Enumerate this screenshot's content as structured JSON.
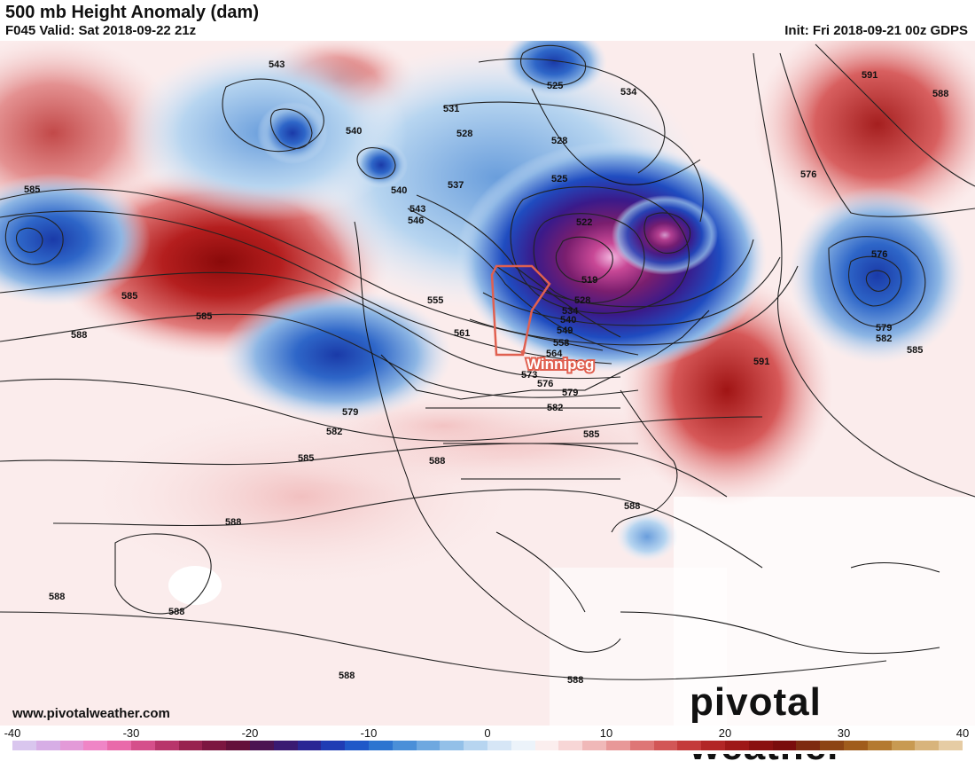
{
  "header": {
    "title": "500 mb Height Anomaly (dam)",
    "valid": "F045 Valid: Sat 2018-09-22 21z",
    "init": "Init: Fri 2018-09-21 00z GDPS"
  },
  "footer": {
    "site": "www.pivotalweather.com",
    "brand": "pivotal weather"
  },
  "map": {
    "highlight_label": "Winnipeg",
    "highlight_color": "#e06050",
    "contour_labels": [
      "543",
      "540",
      "531",
      "528",
      "525",
      "534",
      "528",
      "525",
      "522",
      "519",
      "528",
      "534",
      "540",
      "549",
      "558",
      "564",
      "537",
      "540",
      "543",
      "546",
      "555",
      "561",
      "573",
      "576",
      "579",
      "582",
      "585",
      "585",
      "585",
      "585",
      "588",
      "588",
      "588",
      "588",
      "588",
      "588",
      "591",
      "591",
      "588",
      "576",
      "576",
      "579",
      "582",
      "585",
      "579",
      "582",
      "585",
      "588",
      "588"
    ]
  },
  "colorbar": {
    "ticks": [
      "-40",
      "-30",
      "-20",
      "-10",
      "0",
      "10",
      "20",
      "30",
      "40"
    ],
    "min": -40,
    "max": 40,
    "colors": [
      "#d9c6ee",
      "#d7aee6",
      "#e39ad8",
      "#ef85c6",
      "#e96aaa",
      "#d54f8b",
      "#b8356b",
      "#98224f",
      "#7c1640",
      "#64103a",
      "#4c1452",
      "#3a1a72",
      "#2a2694",
      "#1f3cb4",
      "#1f58c8",
      "#2d74d0",
      "#4a8fd8",
      "#6ea8e0",
      "#93c0e8",
      "#b7d5f0",
      "#d6e6f6",
      "#ecf3fa",
      "#fbeeee",
      "#f7d6d6",
      "#f0b8b8",
      "#e89898",
      "#de7676",
      "#d25656",
      "#c43a3a",
      "#b22626",
      "#9e1818",
      "#8a1010",
      "#7a0c0c",
      "#7e2a10",
      "#8c4414",
      "#a05c1c",
      "#b47a30",
      "#c89a52",
      "#d8b47c",
      "#e6cca4"
    ]
  }
}
